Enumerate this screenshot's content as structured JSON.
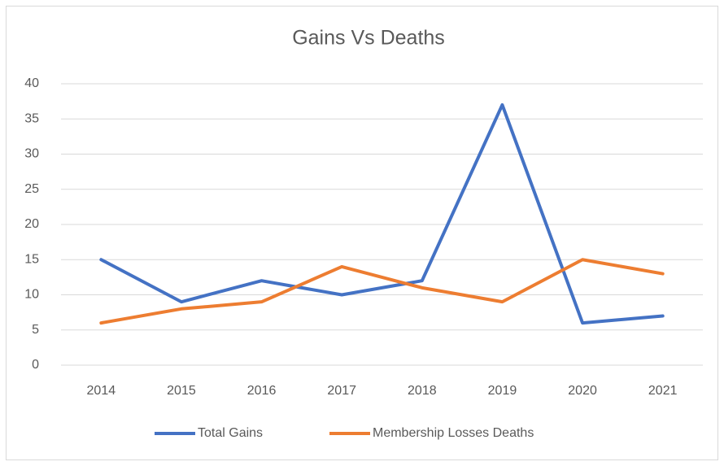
{
  "chart_data": {
    "type": "line",
    "title": "Gains Vs Deaths",
    "categories": [
      "2014",
      "2015",
      "2016",
      "2017",
      "2018",
      "2019",
      "2020",
      "2021"
    ],
    "series": [
      {
        "name": "Total Gains",
        "color": "#4472c4",
        "values": [
          15,
          9,
          12,
          10,
          12,
          37,
          6,
          7
        ]
      },
      {
        "name": "Membership Losses Deaths",
        "color": "#ed7d31",
        "values": [
          6,
          8,
          9,
          14,
          11,
          9,
          15,
          13
        ]
      }
    ],
    "ylim": [
      0,
      40
    ],
    "yticks": [
      0,
      5,
      10,
      15,
      20,
      25,
      30,
      35,
      40
    ],
    "grid": true,
    "legend": "bottom"
  }
}
